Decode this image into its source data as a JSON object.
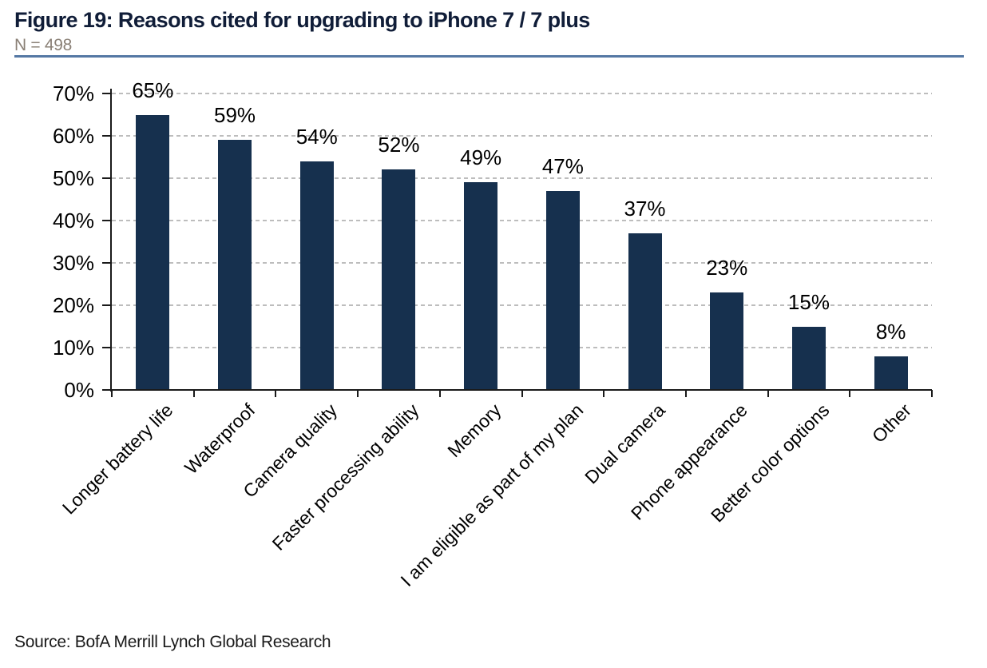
{
  "header": {
    "title": "Figure 19: Reasons cited for upgrading to iPhone 7 / 7 plus",
    "sample_size": "N = 498"
  },
  "footer": {
    "source": "Source: BofA Merrill Lynch Global Research"
  },
  "colors": {
    "bar": "#16304e",
    "title_navy": "#101d38",
    "subtitle_gray": "#8a8076",
    "header_rule_blue": "#5578a4",
    "gridline_gray": "#bdbdbd",
    "axis_black": "#1a1a1a"
  },
  "chart_data": {
    "type": "bar",
    "title": "Figure 19: Reasons cited for upgrading to iPhone 7 / 7 plus",
    "sample_note": "N = 498",
    "categories": [
      "Longer battery life",
      "Waterproof",
      "Camera quality",
      "Faster processing ability",
      "Memory",
      "I am eligible as part of my plan",
      "Dual camera",
      "Phone appearance",
      "Better color options",
      "Other"
    ],
    "values": [
      65,
      59,
      54,
      52,
      49,
      47,
      37,
      23,
      15,
      8
    ],
    "value_labels": [
      "65%",
      "59%",
      "54%",
      "52%",
      "49%",
      "47%",
      "37%",
      "23%",
      "15%",
      "8%"
    ],
    "xlabel": "",
    "ylabel": "",
    "ylim": [
      0,
      70
    ],
    "yticks": [
      0,
      10,
      20,
      30,
      40,
      50,
      60,
      70
    ],
    "ytick_labels": [
      "0%",
      "10%",
      "20%",
      "30%",
      "40%",
      "50%",
      "60%",
      "70%"
    ],
    "grid": "horizontal dashed, on",
    "legend": "none",
    "bar_color": "#16304e",
    "source": "Source: BofA Merrill Lynch Global Research"
  }
}
